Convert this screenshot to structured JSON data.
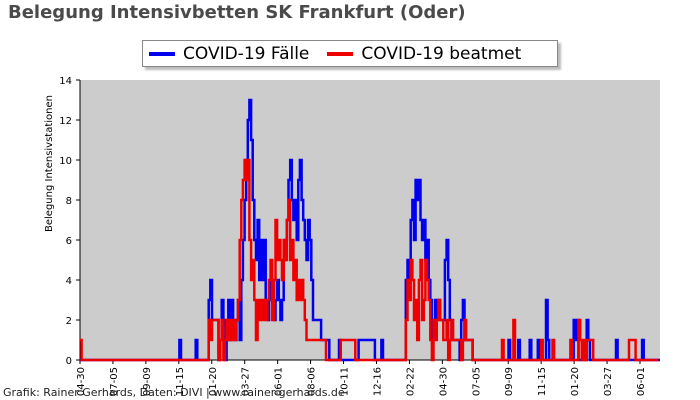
{
  "chart_data": {
    "type": "line",
    "title": "Belegung Intensivbetten SK Frankfurt (Oder)",
    "ylabel": "Belegung Intensivstationen",
    "xlabel": "",
    "ylim": [
      0,
      14
    ],
    "yticks": [
      0,
      2,
      4,
      6,
      8,
      10,
      12,
      14
    ],
    "x_tick_labels": [
      "04-30",
      "07-05",
      "09-09",
      "11-15",
      "01-20",
      "03-27",
      "06-01",
      "08-06",
      "10-11",
      "12-16",
      "02-22",
      "04-30",
      "07-05",
      "09-09",
      "11-15",
      "01-20",
      "03-27",
      "06-01"
    ],
    "grid": false,
    "legend_position": "top-center",
    "background": "#cccccc",
    "series": [
      {
        "name": "COVID-19 Fälle",
        "color": "#0000ee",
        "points": [
          [
            0,
            0
          ],
          [
            60,
            0
          ],
          [
            61,
            1
          ],
          [
            62,
            0
          ],
          [
            70,
            0
          ],
          [
            71,
            1
          ],
          [
            72,
            0
          ],
          [
            78,
            0
          ],
          [
            79,
            3
          ],
          [
            80,
            4
          ],
          [
            81,
            2
          ],
          [
            84,
            2
          ],
          [
            85,
            0
          ],
          [
            86,
            1
          ],
          [
            87,
            3
          ],
          [
            88,
            2
          ],
          [
            89,
            0
          ],
          [
            90,
            1
          ],
          [
            91,
            3
          ],
          [
            92,
            1
          ],
          [
            93,
            3
          ],
          [
            94,
            2
          ],
          [
            95,
            1
          ],
          [
            96,
            2
          ],
          [
            97,
            3
          ],
          [
            98,
            1
          ],
          [
            99,
            4
          ],
          [
            100,
            6
          ],
          [
            101,
            8
          ],
          [
            102,
            10
          ],
          [
            103,
            12
          ],
          [
            104,
            13
          ],
          [
            105,
            11
          ],
          [
            106,
            8
          ],
          [
            107,
            6
          ],
          [
            108,
            5
          ],
          [
            109,
            7
          ],
          [
            110,
            4
          ],
          [
            111,
            6
          ],
          [
            112,
            4
          ],
          [
            113,
            6
          ],
          [
            114,
            3
          ],
          [
            115,
            2
          ],
          [
            116,
            3
          ],
          [
            117,
            4
          ],
          [
            118,
            3
          ],
          [
            119,
            2
          ],
          [
            120,
            3
          ],
          [
            121,
            4
          ],
          [
            122,
            3
          ],
          [
            123,
            2
          ],
          [
            124,
            3
          ],
          [
            125,
            5
          ],
          [
            126,
            6
          ],
          [
            127,
            7
          ],
          [
            128,
            9
          ],
          [
            129,
            10
          ],
          [
            130,
            8
          ],
          [
            131,
            7
          ],
          [
            132,
            8
          ],
          [
            133,
            6
          ],
          [
            134,
            9
          ],
          [
            135,
            10
          ],
          [
            136,
            8
          ],
          [
            137,
            7
          ],
          [
            138,
            6
          ],
          [
            139,
            5
          ],
          [
            140,
            7
          ],
          [
            141,
            6
          ],
          [
            142,
            4
          ],
          [
            143,
            2
          ],
          [
            147,
            2
          ],
          [
            148,
            1
          ],
          [
            152,
            1
          ],
          [
            153,
            0
          ],
          [
            158,
            0
          ],
          [
            159,
            1
          ],
          [
            160,
            0
          ],
          [
            170,
            0
          ],
          [
            171,
            1
          ],
          [
            180,
            1
          ],
          [
            181,
            0
          ],
          [
            184,
            0
          ],
          [
            185,
            1
          ],
          [
            186,
            0
          ],
          [
            199,
            0
          ],
          [
            200,
            4
          ],
          [
            201,
            5
          ],
          [
            202,
            4
          ],
          [
            203,
            7
          ],
          [
            204,
            8
          ],
          [
            205,
            6
          ],
          [
            206,
            9
          ],
          [
            207,
            8
          ],
          [
            208,
            9
          ],
          [
            209,
            7
          ],
          [
            210,
            6
          ],
          [
            211,
            7
          ],
          [
            212,
            5
          ],
          [
            213,
            6
          ],
          [
            214,
            4
          ],
          [
            215,
            3
          ],
          [
            216,
            1
          ],
          [
            217,
            2
          ],
          [
            218,
            3
          ],
          [
            219,
            2
          ],
          [
            220,
            3
          ],
          [
            221,
            2
          ],
          [
            224,
            5
          ],
          [
            225,
            6
          ],
          [
            226,
            4
          ],
          [
            227,
            2
          ],
          [
            228,
            1
          ],
          [
            232,
            1
          ],
          [
            233,
            0
          ],
          [
            234,
            2
          ],
          [
            235,
            3
          ],
          [
            236,
            1
          ],
          [
            240,
            1
          ],
          [
            241,
            0
          ],
          [
            262,
            0
          ],
          [
            263,
            1
          ],
          [
            264,
            0
          ],
          [
            268,
            0
          ],
          [
            269,
            1
          ],
          [
            270,
            0
          ],
          [
            275,
            0
          ],
          [
            276,
            1
          ],
          [
            277,
            0
          ],
          [
            280,
            0
          ],
          [
            281,
            1
          ],
          [
            282,
            0
          ],
          [
            285,
            0
          ],
          [
            286,
            3
          ],
          [
            287,
            1
          ],
          [
            288,
            0
          ],
          [
            302,
            0
          ],
          [
            303,
            2
          ],
          [
            304,
            1
          ],
          [
            305,
            2
          ],
          [
            306,
            0
          ],
          [
            310,
            0
          ],
          [
            311,
            2
          ],
          [
            312,
            1
          ],
          [
            313,
            0
          ],
          [
            328,
            0
          ],
          [
            329,
            1
          ],
          [
            330,
            0
          ],
          [
            344,
            0
          ],
          [
            345,
            1
          ],
          [
            346,
            0
          ],
          [
            356,
            0
          ]
        ]
      },
      {
        "name": "COVID-19 beatmet",
        "color": "#ee0000",
        "points": [
          [
            0,
            1
          ],
          [
            1,
            0
          ],
          [
            78,
            0
          ],
          [
            79,
            2
          ],
          [
            80,
            1
          ],
          [
            81,
            2
          ],
          [
            84,
            2
          ],
          [
            85,
            0
          ],
          [
            86,
            1
          ],
          [
            87,
            2
          ],
          [
            88,
            0
          ],
          [
            89,
            1
          ],
          [
            90,
            2
          ],
          [
            91,
            1
          ],
          [
            92,
            2
          ],
          [
            93,
            1
          ],
          [
            94,
            2
          ],
          [
            95,
            1
          ],
          [
            96,
            2
          ],
          [
            97,
            3
          ],
          [
            98,
            6
          ],
          [
            99,
            8
          ],
          [
            100,
            9
          ],
          [
            101,
            10
          ],
          [
            102,
            9
          ],
          [
            103,
            10
          ],
          [
            104,
            6
          ],
          [
            105,
            4
          ],
          [
            106,
            5
          ],
          [
            107,
            3
          ],
          [
            108,
            1
          ],
          [
            109,
            3
          ],
          [
            110,
            2
          ],
          [
            111,
            3
          ],
          [
            112,
            2
          ],
          [
            113,
            3
          ],
          [
            114,
            2
          ],
          [
            115,
            3
          ],
          [
            116,
            4
          ],
          [
            117,
            5
          ],
          [
            118,
            2
          ],
          [
            119,
            4
          ],
          [
            120,
            7
          ],
          [
            121,
            5
          ],
          [
            122,
            6
          ],
          [
            123,
            5
          ],
          [
            124,
            4
          ],
          [
            125,
            6
          ],
          [
            126,
            5
          ],
          [
            127,
            7
          ],
          [
            128,
            8
          ],
          [
            129,
            5
          ],
          [
            130,
            6
          ],
          [
            131,
            4
          ],
          [
            132,
            5
          ],
          [
            133,
            3
          ],
          [
            134,
            4
          ],
          [
            135,
            3
          ],
          [
            136,
            4
          ],
          [
            137,
            3
          ],
          [
            138,
            2
          ],
          [
            139,
            1
          ],
          [
            150,
            1
          ],
          [
            151,
            0
          ],
          [
            159,
            0
          ],
          [
            160,
            1
          ],
          [
            168,
            1
          ],
          [
            169,
            0
          ],
          [
            199,
            0
          ],
          [
            200,
            2
          ],
          [
            201,
            4
          ],
          [
            202,
            3
          ],
          [
            203,
            5
          ],
          [
            204,
            4
          ],
          [
            205,
            2
          ],
          [
            206,
            3
          ],
          [
            207,
            1
          ],
          [
            208,
            4
          ],
          [
            209,
            5
          ],
          [
            210,
            2
          ],
          [
            211,
            3
          ],
          [
            212,
            5
          ],
          [
            213,
            4
          ],
          [
            214,
            3
          ],
          [
            215,
            1
          ],
          [
            216,
            0
          ],
          [
            217,
            2
          ],
          [
            218,
            1
          ],
          [
            219,
            2
          ],
          [
            220,
            3
          ],
          [
            221,
            2
          ],
          [
            222,
            2
          ],
          [
            223,
            1
          ],
          [
            224,
            1
          ],
          [
            225,
            2
          ],
          [
            226,
            0
          ],
          [
            227,
            1
          ],
          [
            228,
            2
          ],
          [
            229,
            1
          ],
          [
            233,
            1
          ],
          [
            234,
            0
          ],
          [
            235,
            1
          ],
          [
            236,
            2
          ],
          [
            237,
            1
          ],
          [
            240,
            1
          ],
          [
            241,
            0
          ],
          [
            258,
            0
          ],
          [
            259,
            1
          ],
          [
            260,
            0
          ],
          [
            265,
            0
          ],
          [
            266,
            2
          ],
          [
            267,
            0
          ],
          [
            282,
            0
          ],
          [
            283,
            1
          ],
          [
            284,
            0
          ],
          [
            289,
            0
          ],
          [
            290,
            1
          ],
          [
            291,
            0
          ],
          [
            300,
            0
          ],
          [
            301,
            1
          ],
          [
            302,
            0
          ],
          [
            305,
            0
          ],
          [
            306,
            2
          ],
          [
            307,
            1
          ],
          [
            308,
            0
          ],
          [
            309,
            1
          ],
          [
            310,
            0
          ],
          [
            311,
            1
          ],
          [
            314,
            1
          ],
          [
            315,
            0
          ],
          [
            336,
            0
          ],
          [
            337,
            1
          ],
          [
            340,
            1
          ],
          [
            341,
            0
          ],
          [
            355,
            0
          ]
        ]
      }
    ],
    "xlim": [
      0,
      356
    ]
  },
  "legend": {
    "item1": "COVID-19 Fälle",
    "item2": "COVID-19 beatmet"
  },
  "footer": "Grafik: Rainer Gerhards, Daten: DIVI | www.rainer-gerhards.de"
}
